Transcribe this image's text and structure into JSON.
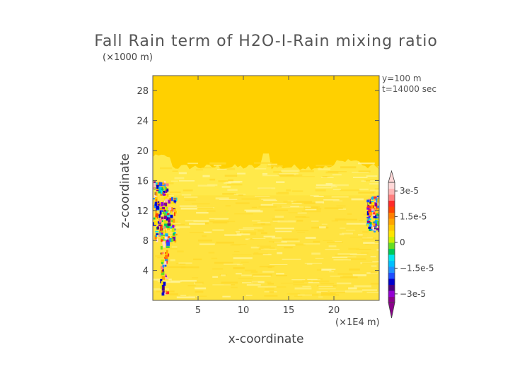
{
  "chart_data": {
    "type": "heatmap",
    "title": "Fall Rain term of H2O-I-Rain mixing ratio",
    "xlabel": "x-coordinate",
    "ylabel": "z-coordinate",
    "x_unit": "(×1E4 m)",
    "y_unit": "(×1000 m)",
    "annotations": [
      "y=100 m",
      "t=14000 sec"
    ],
    "xlim": [
      0,
      25
    ],
    "ylim": [
      0,
      30
    ],
    "x_ticks": [
      5,
      10,
      15,
      20
    ],
    "y_ticks": [
      4,
      8,
      12,
      16,
      20,
      24,
      28
    ],
    "colorbar": {
      "range": [
        -3.5e-05,
        3.5e-05
      ],
      "tick_values": [
        3e-05,
        1.5e-05,
        0,
        -1.5e-05,
        -3e-05
      ],
      "tick_labels": [
        "3e-5",
        "1.5e-5",
        "0",
        "−1.5e-5",
        "−3e-5"
      ],
      "colors": [
        "#8b008b",
        "#9400d3",
        "#4b0082",
        "#0000cd",
        "#1e4fff",
        "#1e90ff",
        "#00bfff",
        "#00e5ee",
        "#00c957",
        "#66dd22",
        "#ccee00",
        "#ffe400",
        "#ffc800",
        "#ffa500",
        "#ff7f00",
        "#ff4500",
        "#ff2a2a",
        "#ff7f7f",
        "#ffb6b6",
        "#ffd8d8"
      ]
    },
    "background_color": "#ffd000",
    "regions": [
      {
        "desc": "upper uniform",
        "z": [
          19,
          30
        ],
        "value": 0.0,
        "color": "#ffd000"
      },
      {
        "desc": "mixed band",
        "z": [
          14,
          19
        ],
        "value": 0.0,
        "color": "#ffe94a"
      },
      {
        "desc": "lower streaked",
        "z": [
          0,
          14
        ],
        "value": 0.0,
        "color": "#ffe340"
      },
      {
        "desc": "left column",
        "x": [
          0,
          2.5
        ],
        "z": [
          1,
          16
        ],
        "value": "mixed"
      },
      {
        "desc": "right edge",
        "x": [
          23.5,
          25
        ],
        "z": [
          9,
          14
        ],
        "value": "mixed"
      }
    ]
  }
}
